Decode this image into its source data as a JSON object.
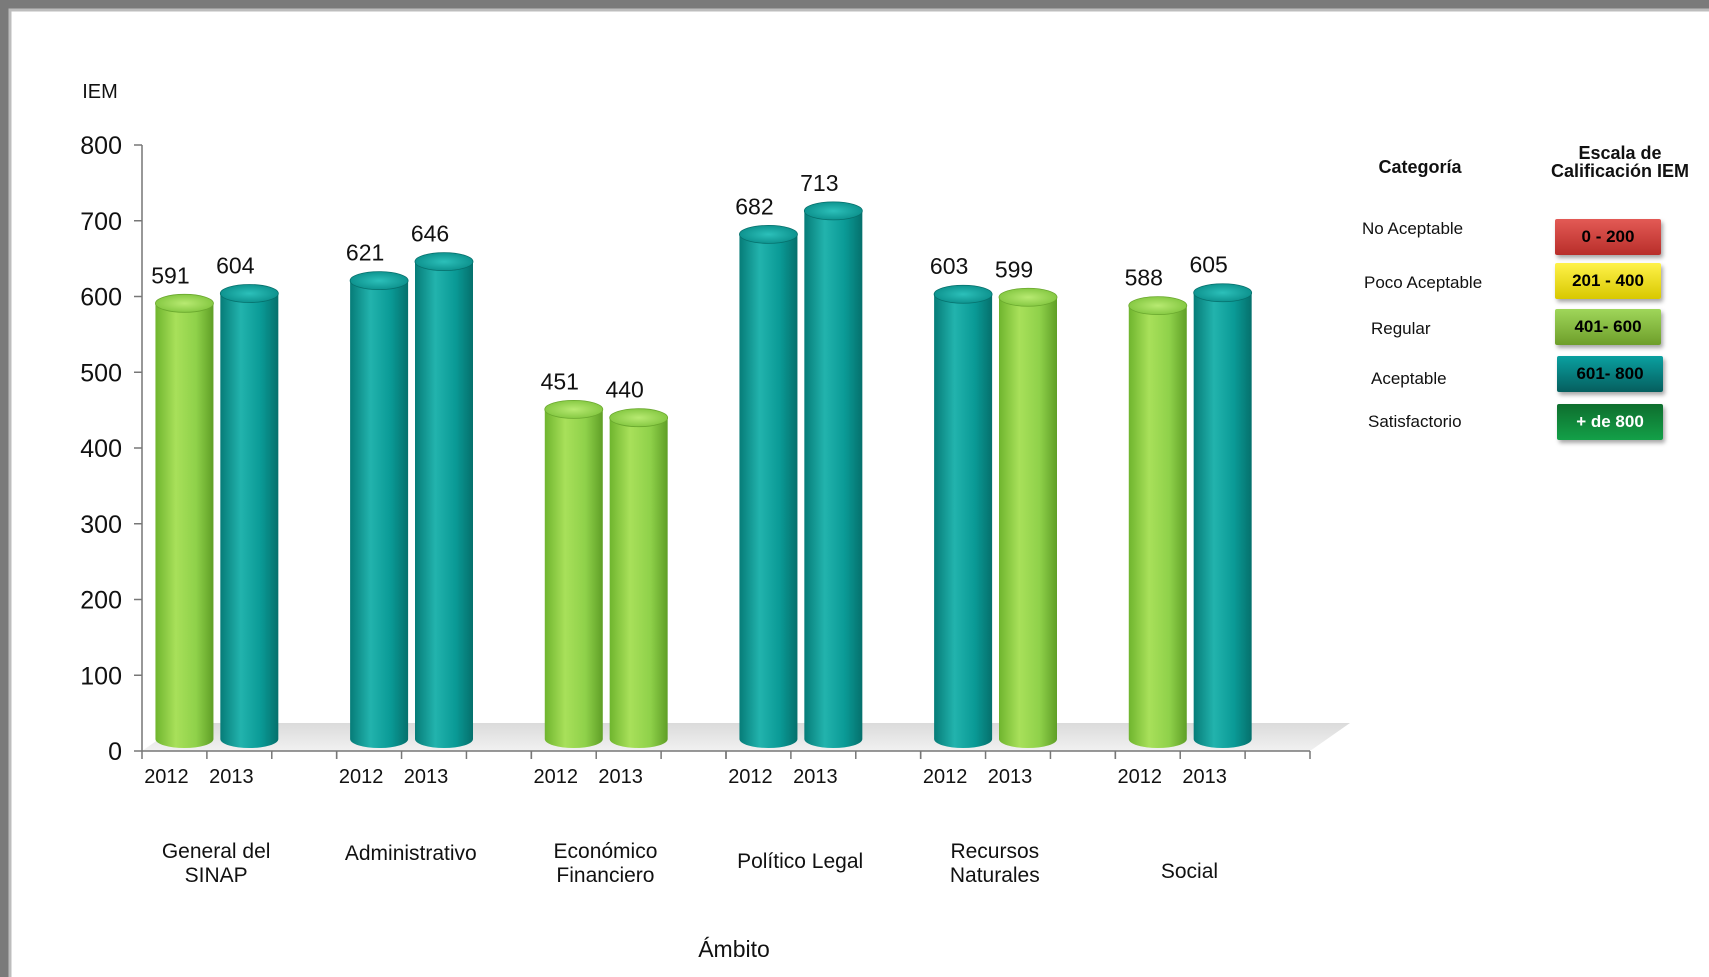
{
  "chart_data": {
    "type": "bar",
    "ylabel": "IEM",
    "xlabel": "Ámbito",
    "ylim": [
      0,
      800
    ],
    "yticks": [
      0,
      100,
      200,
      300,
      400,
      500,
      600,
      700,
      800
    ],
    "groups": [
      {
        "label": [
          "General del",
          "SINAP"
        ],
        "bars": [
          {
            "year": "2012",
            "value": 591,
            "category": "Regular"
          },
          {
            "year": "2013",
            "value": 604,
            "category": "Aceptable"
          }
        ]
      },
      {
        "label": [
          "Administrativo"
        ],
        "bars": [
          {
            "year": "2012",
            "value": 621,
            "category": "Aceptable"
          },
          {
            "year": "2013",
            "value": 646,
            "category": "Aceptable"
          }
        ]
      },
      {
        "label": [
          "Económico",
          "Financiero"
        ],
        "bars": [
          {
            "year": "2012",
            "value": 451,
            "category": "Regular"
          },
          {
            "year": "2013",
            "value": 440,
            "category": "Regular"
          }
        ]
      },
      {
        "label": [
          "Político Legal"
        ],
        "bars": [
          {
            "year": "2012",
            "value": 682,
            "category": "Aceptable"
          },
          {
            "year": "2013",
            "value": 713,
            "category": "Aceptable"
          }
        ]
      },
      {
        "label": [
          "Recursos",
          "Naturales"
        ],
        "bars": [
          {
            "year": "2012",
            "value": 603,
            "category": "Aceptable"
          },
          {
            "year": "2013",
            "value": 599,
            "category": "Regular"
          }
        ]
      },
      {
        "label": [
          "Social"
        ],
        "bars": [
          {
            "year": "2012",
            "value": 588,
            "category": "Regular"
          },
          {
            "year": "2013",
            "value": 605,
            "category": "Aceptable"
          }
        ]
      }
    ],
    "colors": {
      "Regular": "#8fd14a",
      "Aceptable": "#0a9a96"
    },
    "grid": false
  },
  "legend": {
    "category_header": "Categoría",
    "scale_header": [
      "Escala de",
      "Calificación IEM"
    ],
    "items": [
      {
        "category": "No Aceptable",
        "range": "0 - 200",
        "color": "#d13b36"
      },
      {
        "category": "Poco  Aceptable",
        "range": "201 - 400",
        "color": "#f2e60a"
      },
      {
        "category": "Regular",
        "range": "401- 600",
        "color": "#8cc63f"
      },
      {
        "category": "Aceptable",
        "range": "601- 800",
        "color": "#008b8b"
      },
      {
        "category": "Satisfactorio",
        "range": "+ de 800",
        "color": "#0f8a3c"
      }
    ]
  }
}
